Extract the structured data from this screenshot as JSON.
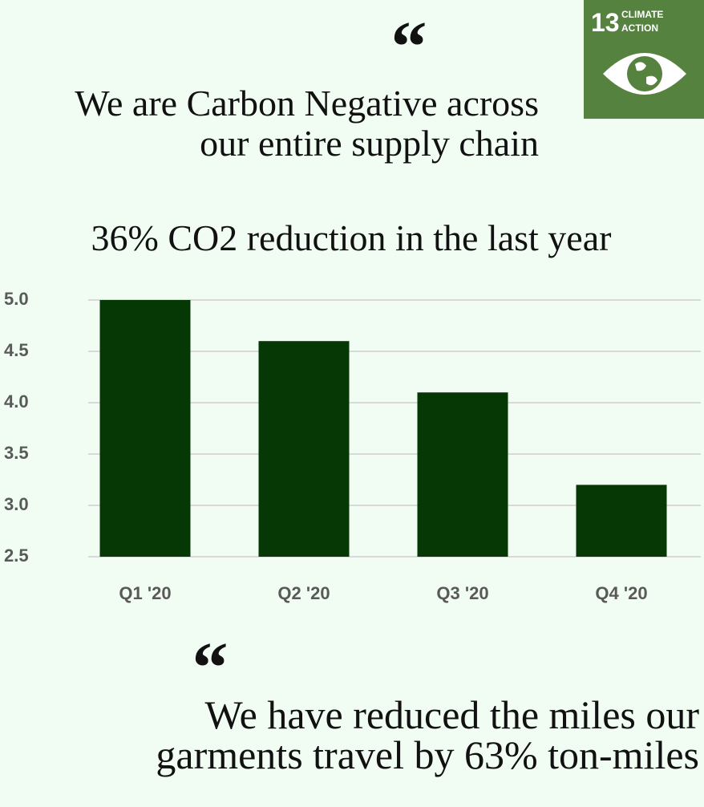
{
  "badge": {
    "number": "13",
    "line1": "CLIMATE",
    "line2": "ACTION"
  },
  "quote_top": {
    "mark": "“",
    "lines": [
      "We are Carbon Negative across",
      "our entire supply chain"
    ]
  },
  "quote_bottom": {
    "mark": "“",
    "lines": [
      "We have reduced the miles our",
      "garments travel by 63% ton-miles"
    ]
  },
  "chart_data": {
    "type": "bar",
    "title": "36% CO2 reduction in the last year",
    "categories": [
      "Q1 '20",
      "Q2 '20",
      "Q3 '20",
      "Q4 '20"
    ],
    "values": [
      5.0,
      4.6,
      4.1,
      3.2
    ],
    "color": "#053805",
    "ylim": [
      2.5,
      5.0
    ],
    "yticks": [
      2.5,
      {
        "value": 3,
        "label": "3.0"
      },
      3.5,
      {
        "value": 4,
        "label": "4.0"
      },
      4.5,
      {
        "value": 5,
        "label": "5.0"
      }
    ],
    "grid": true
  }
}
